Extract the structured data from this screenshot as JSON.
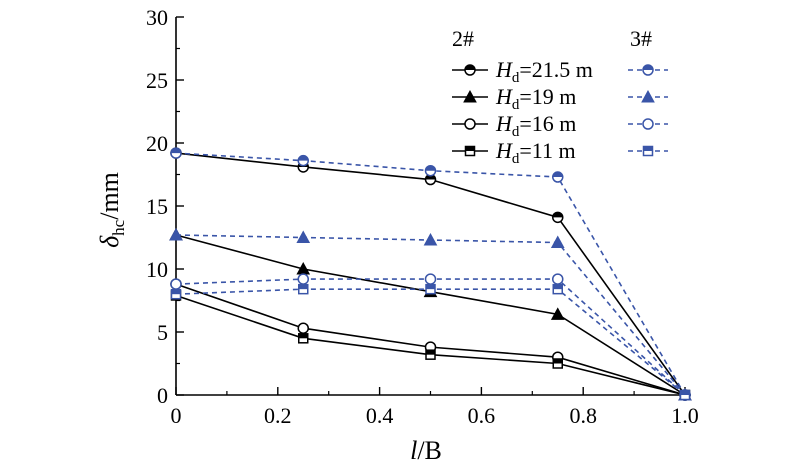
{
  "chart_data": {
    "type": "line",
    "x": [
      0,
      0.25,
      0.5,
      0.75,
      1.0
    ],
    "xlim": [
      0,
      1.0
    ],
    "ylim": [
      0,
      30
    ],
    "xticks": [
      "0",
      "0.2",
      "0.4",
      "0.6",
      "0.8",
      "1.0"
    ],
    "yticks": [
      "0",
      "5",
      "10",
      "15",
      "20",
      "25",
      "30"
    ],
    "xlabel": {
      "italic": "l",
      "rest": "/B"
    },
    "ylabel": {
      "symbol": "δ",
      "sub": "hc",
      "rest": "/mm"
    },
    "legend": {
      "position": "top-right",
      "group_2": "2#",
      "group_3": "3#",
      "label_prefix": "H",
      "label_sub": "d",
      "entries": [
        {
          "value_text": "=21.5 m",
          "marker": "half-filled-circle"
        },
        {
          "value_text": "=19 m",
          "marker": "filled-triangle"
        },
        {
          "value_text": "=16 m",
          "marker": "open-circle"
        },
        {
          "value_text": "=11 m",
          "marker": "half-filled-square"
        }
      ]
    },
    "colors": {
      "group_2": "#000000",
      "group_3": "#3a55a8"
    },
    "series": [
      {
        "group": "2#",
        "entry": 0,
        "marker": "half-filled-circle",
        "values": [
          19.2,
          18.1,
          17.1,
          14.1,
          0
        ]
      },
      {
        "group": "2#",
        "entry": 1,
        "marker": "filled-triangle",
        "values": [
          12.7,
          10.0,
          8.2,
          6.4,
          0
        ]
      },
      {
        "group": "2#",
        "entry": 2,
        "marker": "open-circle",
        "values": [
          8.8,
          5.3,
          3.8,
          3.0,
          0
        ]
      },
      {
        "group": "2#",
        "entry": 3,
        "marker": "half-filled-square",
        "values": [
          7.9,
          4.5,
          3.2,
          2.5,
          0
        ]
      },
      {
        "group": "3#",
        "entry": 0,
        "marker": "half-filled-circle",
        "values": [
          19.2,
          18.6,
          17.8,
          17.3,
          0
        ]
      },
      {
        "group": "3#",
        "entry": 1,
        "marker": "filled-triangle",
        "values": [
          12.7,
          12.5,
          12.3,
          12.1,
          0
        ]
      },
      {
        "group": "3#",
        "entry": 2,
        "marker": "open-circle",
        "values": [
          8.8,
          9.2,
          9.2,
          9.2,
          0
        ]
      },
      {
        "group": "3#",
        "entry": 3,
        "marker": "half-filled-square",
        "values": [
          8.0,
          8.4,
          8.4,
          8.4,
          0
        ]
      }
    ]
  }
}
